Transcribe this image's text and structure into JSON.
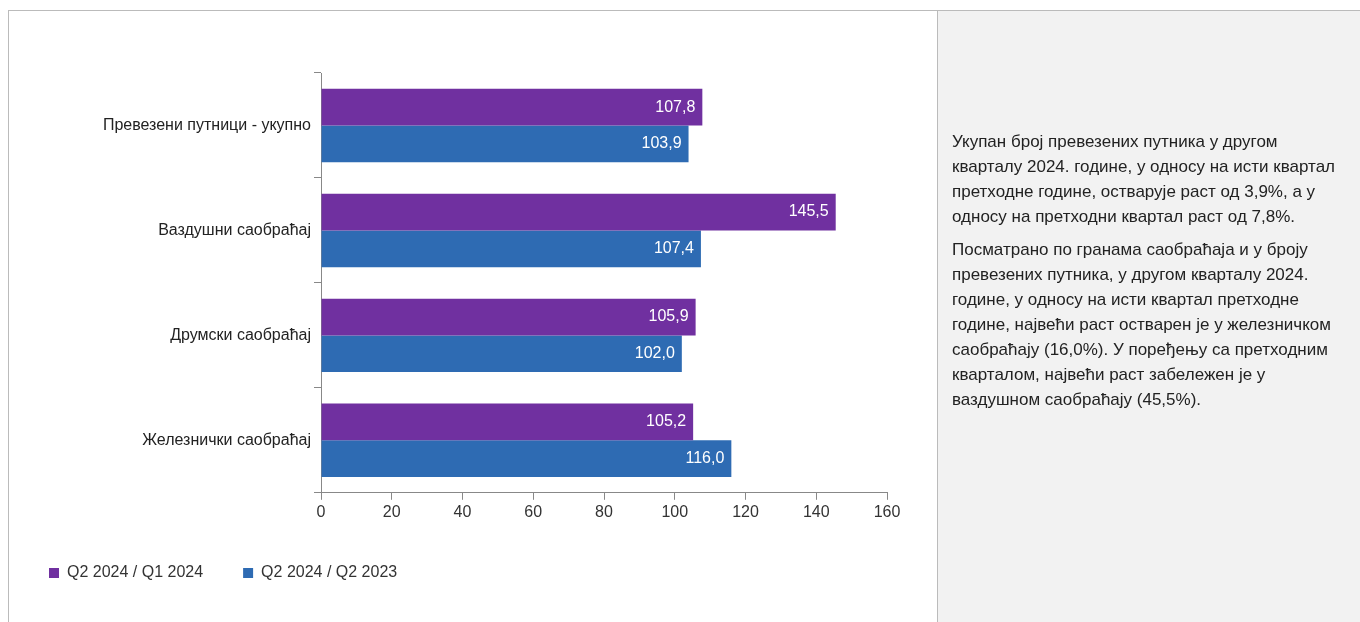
{
  "chart_data": {
    "type": "bar",
    "orientation": "horizontal",
    "categories": [
      "Превезени путници - укупно",
      "Ваздушни саобраћај",
      "Друмски саобраћај",
      "Железнички саобраћај"
    ],
    "series": [
      {
        "name": "Q2 2024 / Q1 2024",
        "color": "#7030a0",
        "values": [
          107.8,
          145.5,
          105.9,
          105.2
        ],
        "value_labels": [
          "107,8",
          "145,5",
          "105,9",
          "105,2"
        ]
      },
      {
        "name": "Q2 2024 / Q2 2023",
        "color": "#2e6bb3",
        "values": [
          103.9,
          107.4,
          102.0,
          116.0
        ],
        "value_labels": [
          "103,9",
          "107,4",
          "102,0",
          "116,0"
        ]
      }
    ],
    "xlim": [
      0,
      160
    ],
    "xticks": [
      0,
      20,
      40,
      60,
      80,
      100,
      120,
      140,
      160
    ],
    "grid": false,
    "legend": "bottom left",
    "annotations": [
      "Укупан број превезених путника у другом кварталу 2024. године, у односу на исти квартал претходне године, остварује раст од 3,9%, а у односу на претходни квартал раст од 7,8%.",
      "Посматрано по гранама саобраћаја и у броју превезених путника, у другом кварталу 2024. године, у односу на исти квартал претходне године, највећи раст остварен је у железничком саобраћају (16,0%). У  поређењу са претходним кварталом, највећи раст забележен је у ваздушном саобраћају (45,5%)."
    ]
  }
}
